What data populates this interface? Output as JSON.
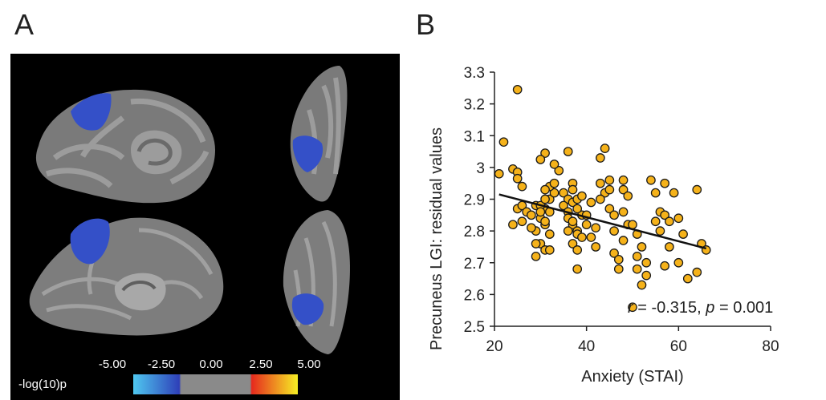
{
  "panels": {
    "a": "A",
    "b": "B"
  },
  "colorbar": {
    "label": "-log(10)p",
    "ticks": [
      "-5.00",
      "-2.50",
      "0.00",
      "2.50",
      "5.00"
    ],
    "colors": {
      "neg_light": "#4fc8f0",
      "neg_dark": "#2e3fb8",
      "zero": "#8a8a8a",
      "pos_dark": "#e62a1e",
      "pos_light": "#f6ef24"
    }
  },
  "colors": {
    "blob": "#3450c8",
    "cortex_dark": "#6a6a6a",
    "cortex_light": "#9c9c9c",
    "point_fill": "#f5b21a",
    "point_stroke": "#1a1a1a"
  },
  "chart_data": {
    "type": "scatter",
    "xlabel": "Anxiety (STAI)",
    "ylabel": "Precuneus LGI: residual values",
    "xlim": [
      20,
      80
    ],
    "ylim": [
      2.5,
      3.3
    ],
    "xticks": [
      "20",
      "40",
      "60",
      "80"
    ],
    "yticks": [
      "2.5",
      "2.6",
      "2.7",
      "2.8",
      "2.9",
      "3",
      "3.1",
      "3.2",
      "3.3"
    ],
    "annotation": {
      "r_label": "r",
      "r_text": " = -0.315, ",
      "p_label": "p",
      "p_text": " = 0.001"
    },
    "fit_line": {
      "x": [
        21,
        66
      ],
      "y": [
        2.915,
        2.745
      ]
    },
    "points": {
      "x": [
        25,
        22,
        21,
        24,
        25,
        25,
        26,
        25,
        26,
        27,
        26,
        28,
        29,
        24,
        29,
        30,
        29,
        28,
        31,
        31,
        31,
        32,
        32,
        32,
        33,
        32,
        33,
        34,
        33,
        31,
        30,
        30,
        30,
        29,
        32,
        31,
        31,
        30,
        31,
        36,
        35,
        36,
        35,
        37,
        37,
        37,
        36,
        36,
        38,
        37,
        38,
        39,
        38,
        37,
        38,
        39,
        38,
        39,
        37,
        38,
        36,
        41,
        40,
        40,
        41,
        42,
        42,
        44,
        43,
        43,
        44,
        43,
        45,
        45,
        45,
        46,
        46,
        46,
        47,
        47,
        48,
        48,
        49,
        48,
        49,
        48,
        50,
        51,
        52,
        51,
        53,
        51,
        52,
        53,
        54,
        55,
        56,
        55,
        56,
        57,
        57,
        58,
        58,
        59,
        57,
        60,
        60,
        61,
        64,
        64,
        65,
        66,
        50,
        62
      ],
      "y": [
        3.245,
        3.08,
        2.98,
        2.995,
        2.985,
        2.965,
        2.94,
        2.87,
        2.88,
        2.86,
        2.83,
        2.85,
        2.88,
        2.82,
        2.72,
        2.76,
        2.8,
        2.81,
        2.74,
        2.87,
        2.82,
        2.79,
        2.86,
        2.9,
        2.92,
        2.94,
        2.95,
        2.99,
        3.01,
        3.045,
        3.025,
        2.88,
        2.84,
        2.76,
        2.74,
        2.93,
        2.9,
        2.86,
        2.83,
        3.05,
        2.92,
        2.9,
        2.88,
        2.95,
        2.93,
        2.89,
        2.86,
        2.84,
        2.9,
        2.82,
        2.8,
        2.85,
        2.79,
        2.76,
        2.74,
        2.78,
        2.68,
        2.91,
        2.83,
        2.87,
        2.8,
        2.89,
        2.85,
        2.82,
        2.78,
        2.81,
        2.75,
        3.06,
        3.03,
        2.95,
        2.92,
        2.9,
        2.96,
        2.93,
        2.87,
        2.85,
        2.8,
        2.73,
        2.71,
        2.68,
        2.96,
        2.93,
        2.91,
        2.86,
        2.82,
        2.77,
        2.82,
        2.79,
        2.75,
        2.72,
        2.7,
        2.68,
        2.63,
        2.66,
        2.96,
        2.92,
        2.86,
        2.83,
        2.8,
        2.95,
        2.85,
        2.83,
        2.75,
        2.92,
        2.69,
        2.84,
        2.7,
        2.79,
        2.93,
        2.67,
        2.76,
        2.74,
        2.56,
        2.65
      ]
    }
  }
}
